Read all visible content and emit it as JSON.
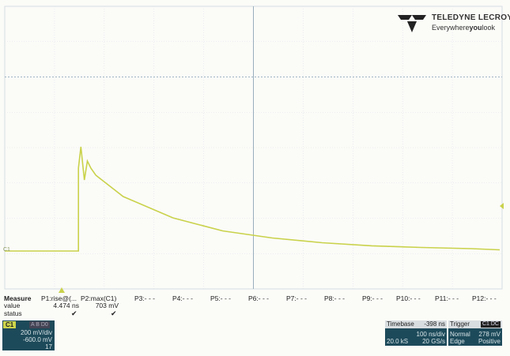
{
  "logo": {
    "brand": "TELEDYNE LECROY",
    "tagline_pre": "Everywhere",
    "tagline_bold": "you",
    "tagline_post": "look"
  },
  "colors": {
    "trace": "#c9d24a",
    "grid": "#9db3c2",
    "panel": "#1d4a5a"
  },
  "chart_data": {
    "type": "line",
    "title": "",
    "xlabel": "",
    "ylabel": "",
    "xlim": [
      0,
      10
    ],
    "ylim": [
      -4,
      4
    ],
    "grid": true,
    "series": [
      {
        "x": [
          0,
          1.1,
          1.1,
          1.15,
          1.22,
          1.28,
          1.35,
          1.45,
          2,
          3,
          4,
          5,
          6,
          7,
          8,
          9,
          10
        ],
        "y": [
          0,
          0,
          3.5,
          4.4,
          3.0,
          3.8,
          3.5,
          3.2,
          2.3,
          1.4,
          0.85,
          0.55,
          0.35,
          0.22,
          0.15,
          0.1,
          0.05
        ]
      }
    ]
  },
  "measure": {
    "label": "Measure",
    "value_label": "value",
    "status_label": "status",
    "params": [
      {
        "name": "P1:rise@(...",
        "value": "4.474 ns",
        "status": "✔"
      },
      {
        "name": "P2:max(C1)",
        "value": "703 mV",
        "status": "✔"
      },
      {
        "name": "P3:- - -",
        "value": "",
        "status": ""
      },
      {
        "name": "P4:- - -",
        "value": "",
        "status": ""
      },
      {
        "name": "P5:- - -",
        "value": "",
        "status": ""
      },
      {
        "name": "P6:- - -",
        "value": "",
        "status": ""
      },
      {
        "name": "P7:- - -",
        "value": "",
        "status": ""
      },
      {
        "name": "P8:- - -",
        "value": "",
        "status": ""
      },
      {
        "name": "P9:- - -",
        "value": "",
        "status": ""
      },
      {
        "name": "P10:- - -",
        "value": "",
        "status": ""
      },
      {
        "name": "P11:- - -",
        "value": "",
        "status": ""
      },
      {
        "name": "P12:- - -",
        "value": "",
        "status": ""
      }
    ]
  },
  "c1": {
    "tag": "C1",
    "flags": "A B D0",
    "vdiv": "200 mV/div",
    "offset": "-600.0 mV",
    "count": "17"
  },
  "timebase": {
    "label": "Timebase",
    "delay": "-398 ns",
    "tdiv": "100 ns/div",
    "samples": "20.0 kS",
    "rate": "20 GS/s"
  },
  "trigger": {
    "label": "Trigger",
    "tag": "C1 DC",
    "mode": "Normal",
    "level": "278 mV",
    "type": "Edge",
    "slope": "Positive"
  }
}
